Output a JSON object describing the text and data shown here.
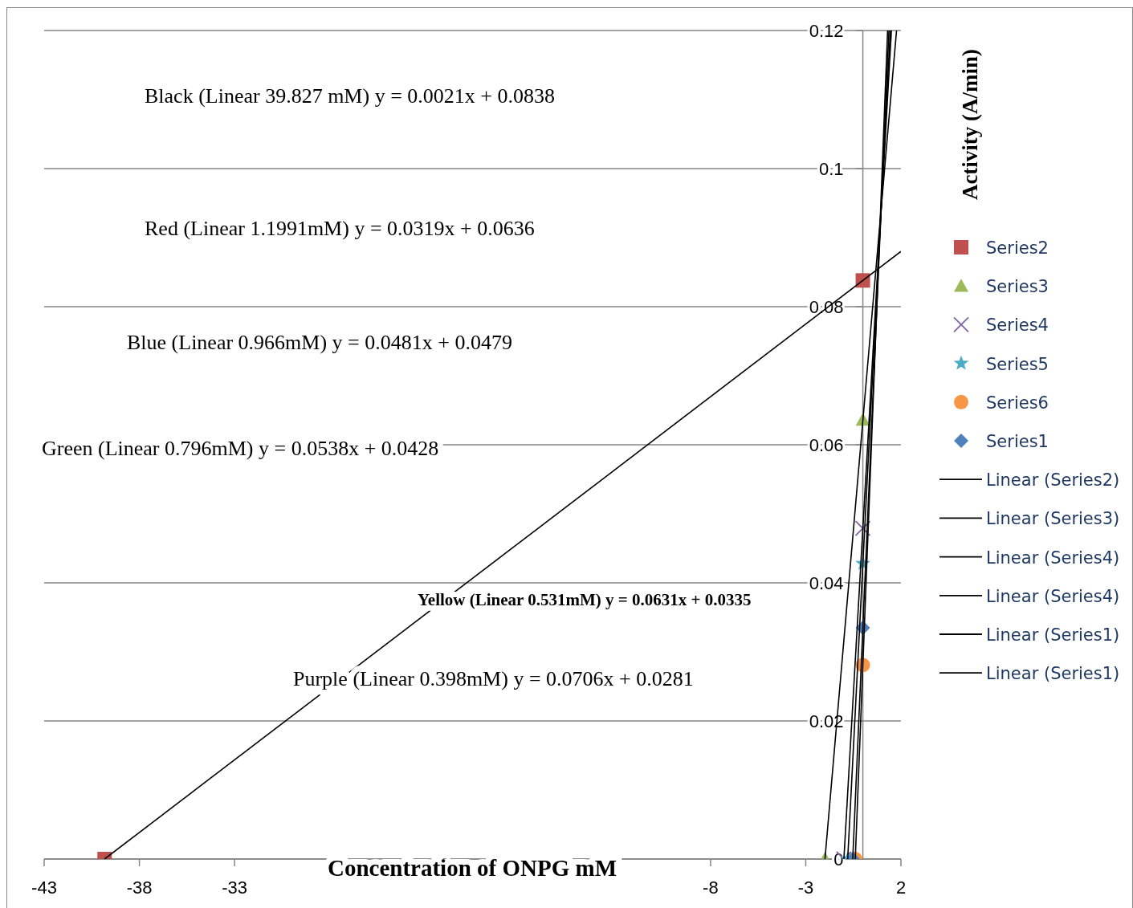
{
  "chart_data": {
    "type": "scatter",
    "xlabel": "Concentration of ONPG mM",
    "ylabel": "Activity (A/min)",
    "xlim": [
      -43,
      2
    ],
    "xticks": [
      -43,
      -38,
      -33,
      -8,
      -3,
      2
    ],
    "ylim": [
      0,
      0.12
    ],
    "yticks": [
      0,
      0.02,
      0.04,
      0.06,
      0.08,
      0.1,
      0.12
    ],
    "grid": "y",
    "legend": "right",
    "annotations": [
      "Black (Linear 39.827 mM) y = 0.0021x + 0.0838",
      "Red (Linear 1.1991mM) y = 0.0319x + 0.0636",
      "Blue (Linear 0.966mM) y = 0.0481x + 0.0479",
      "Green (Linear 0.796mM) y = 0.0538x + 0.0428",
      "Yellow (Linear 0.531mM) y = 0.0631x + 0.0335",
      "Purple (Linear 0.398mM) y = 0.0706x + 0.0281"
    ],
    "series": [
      {
        "name": "Series2",
        "marker": "square",
        "color": "#c0504d",
        "x": [
          -39.827,
          0
        ],
        "values": [
          0,
          0.0838
        ]
      },
      {
        "name": "Series3",
        "marker": "triangle",
        "color": "#9bbb59",
        "x": [
          -1.99,
          0
        ],
        "values": [
          0,
          0.0636
        ]
      },
      {
        "name": "Series4",
        "marker": "cross",
        "color": "#8064a2",
        "x": [
          -0.996,
          0
        ],
        "values": [
          0,
          0.0479
        ]
      },
      {
        "name": "Series5",
        "marker": "star",
        "color": "#4bacc6",
        "x": [
          -0.796,
          0
        ],
        "values": [
          0,
          0.0428
        ]
      },
      {
        "name": "Series6",
        "marker": "circle",
        "color": "#f79646",
        "x": [
          -0.398,
          0
        ],
        "values": [
          0,
          0.0281
        ]
      },
      {
        "name": "Series1",
        "marker": "diamond",
        "color": "#4f81bd",
        "x": [
          -0.531,
          0
        ],
        "values": [
          0,
          0.0335
        ]
      },
      {
        "name": "Linear (Series2)",
        "type": "line",
        "marker": "none",
        "color": "#000000",
        "x": [
          -39.827,
          2
        ],
        "values": [
          0,
          0.088
        ]
      },
      {
        "name": "Linear (Series3)",
        "type": "line",
        "marker": "none",
        "color": "#000000",
        "x": [
          -1.99,
          1.77
        ],
        "values": [
          0,
          0.12
        ]
      },
      {
        "name": "Linear (Series4)",
        "type": "line",
        "marker": "none",
        "color": "#000000",
        "x": [
          -0.996,
          1.5
        ],
        "values": [
          0,
          0.12
        ]
      },
      {
        "name": "Linear (Series4)",
        "type": "line",
        "marker": "none",
        "color": "#000000",
        "x": [
          -0.796,
          1.44
        ],
        "values": [
          0,
          0.12
        ]
      },
      {
        "name": "Linear (Series1)",
        "type": "line",
        "marker": "none",
        "color": "#000000",
        "x": [
          -0.531,
          1.37
        ],
        "values": [
          0,
          0.12
        ]
      },
      {
        "name": "Linear (Series1)",
        "type": "line",
        "marker": "none",
        "color": "#000000",
        "x": [
          -0.398,
          1.3
        ],
        "values": [
          0,
          0.12
        ]
      }
    ]
  }
}
